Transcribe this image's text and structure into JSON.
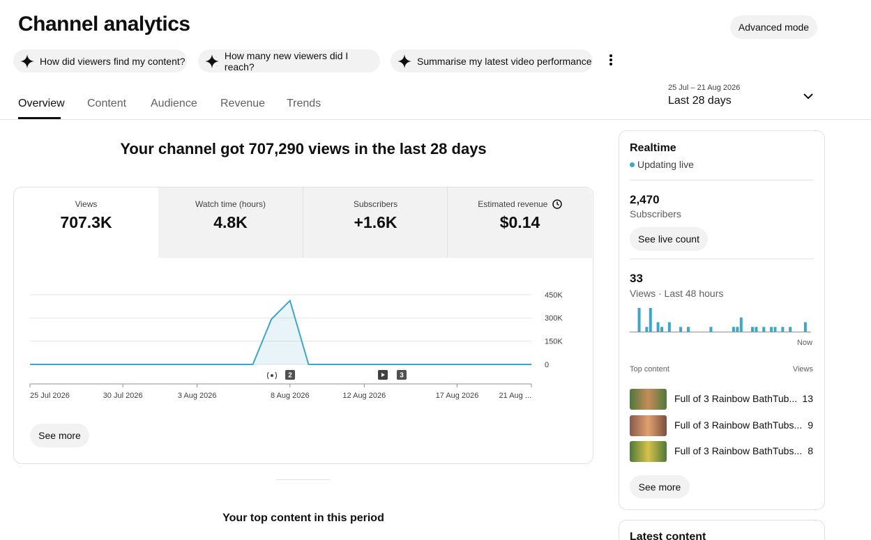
{
  "header": {
    "title": "Channel analytics",
    "advanced_mode": "Advanced mode"
  },
  "suggestions": [
    "How did viewers find my content?",
    "How many new viewers did I reach?",
    "Summarise my latest video performance"
  ],
  "tabs": [
    "Overview",
    "Content",
    "Audience",
    "Revenue",
    "Trends"
  ],
  "date_range": {
    "range": "25 Jul – 21 Aug 2026",
    "label": "Last 28 days"
  },
  "summary": "Your channel got 707,290 views in the last 28 days",
  "metrics": [
    {
      "label": "Views",
      "value": "707.3K"
    },
    {
      "label": "Watch time (hours)",
      "value": "4.8K"
    },
    {
      "label": "Subscribers",
      "value": "+1.6K"
    },
    {
      "label": "Estimated revenue",
      "value": "$0.14"
    }
  ],
  "chart_events": [
    "2",
    "3"
  ],
  "see_more": "See more",
  "top_content_title": "Your top content in this period",
  "chart_data": [
    {
      "type": "line",
      "color": "#3ea6c8",
      "categories": [
        "25 Jul 2026",
        null,
        null,
        null,
        null,
        "30 Jul 2026",
        null,
        null,
        null,
        "3 Aug 2026",
        null,
        null,
        null,
        null,
        "8 Aug 2026",
        null,
        null,
        null,
        "12 Aug 2026",
        null,
        null,
        null,
        null,
        "17 Aug 2026",
        null,
        null,
        null,
        "21 Aug ..."
      ],
      "values": [
        0,
        0,
        0,
        0,
        0,
        0,
        0,
        0,
        0,
        0,
        0,
        0,
        0,
        292000,
        412000,
        0,
        0,
        0,
        0,
        0,
        0,
        0,
        0,
        0,
        0,
        0,
        0,
        0
      ],
      "ylim": [
        0,
        450000
      ],
      "yticks": [
        0,
        {
          "value": 150000,
          "label": "150K"
        },
        {
          "value": 300000,
          "label": "300K"
        },
        {
          "value": 450000,
          "label": "450K"
        }
      ],
      "grid": true
    },
    {
      "type": "bar",
      "color": "#3ea6c8",
      "xlabel": "Now",
      "values": [
        0,
        0,
        5,
        0,
        1,
        5,
        0,
        2,
        1,
        0,
        2,
        0,
        0,
        1,
        0,
        1,
        0,
        0,
        0,
        0,
        0,
        1,
        0,
        0,
        0,
        0,
        0,
        1,
        1,
        3,
        0,
        0,
        1,
        1,
        0,
        1,
        0,
        1,
        1,
        0,
        1,
        0,
        1,
        0,
        0,
        0,
        2,
        0
      ],
      "ylim": [
        0,
        5
      ]
    }
  ],
  "realtime": {
    "title": "Realtime",
    "status": "Updating live",
    "subscribers": {
      "value": "2,470",
      "label": "Subscribers"
    },
    "see_live_count": "See live count",
    "views": {
      "value": "33",
      "label": "Views · Last 48 hours"
    },
    "top_content": {
      "header": "Top content",
      "views_header": "Views",
      "items": [
        {
          "title": "Full of 3 Rainbow BathTub...",
          "views": "13"
        },
        {
          "title": "Full of 3 Rainbow BathTubs...",
          "views": "9"
        },
        {
          "title": "Full of 3 Rainbow BathTubs...",
          "views": "8"
        }
      ]
    },
    "see_more": "See more"
  },
  "latest_content": {
    "title": "Latest content"
  }
}
